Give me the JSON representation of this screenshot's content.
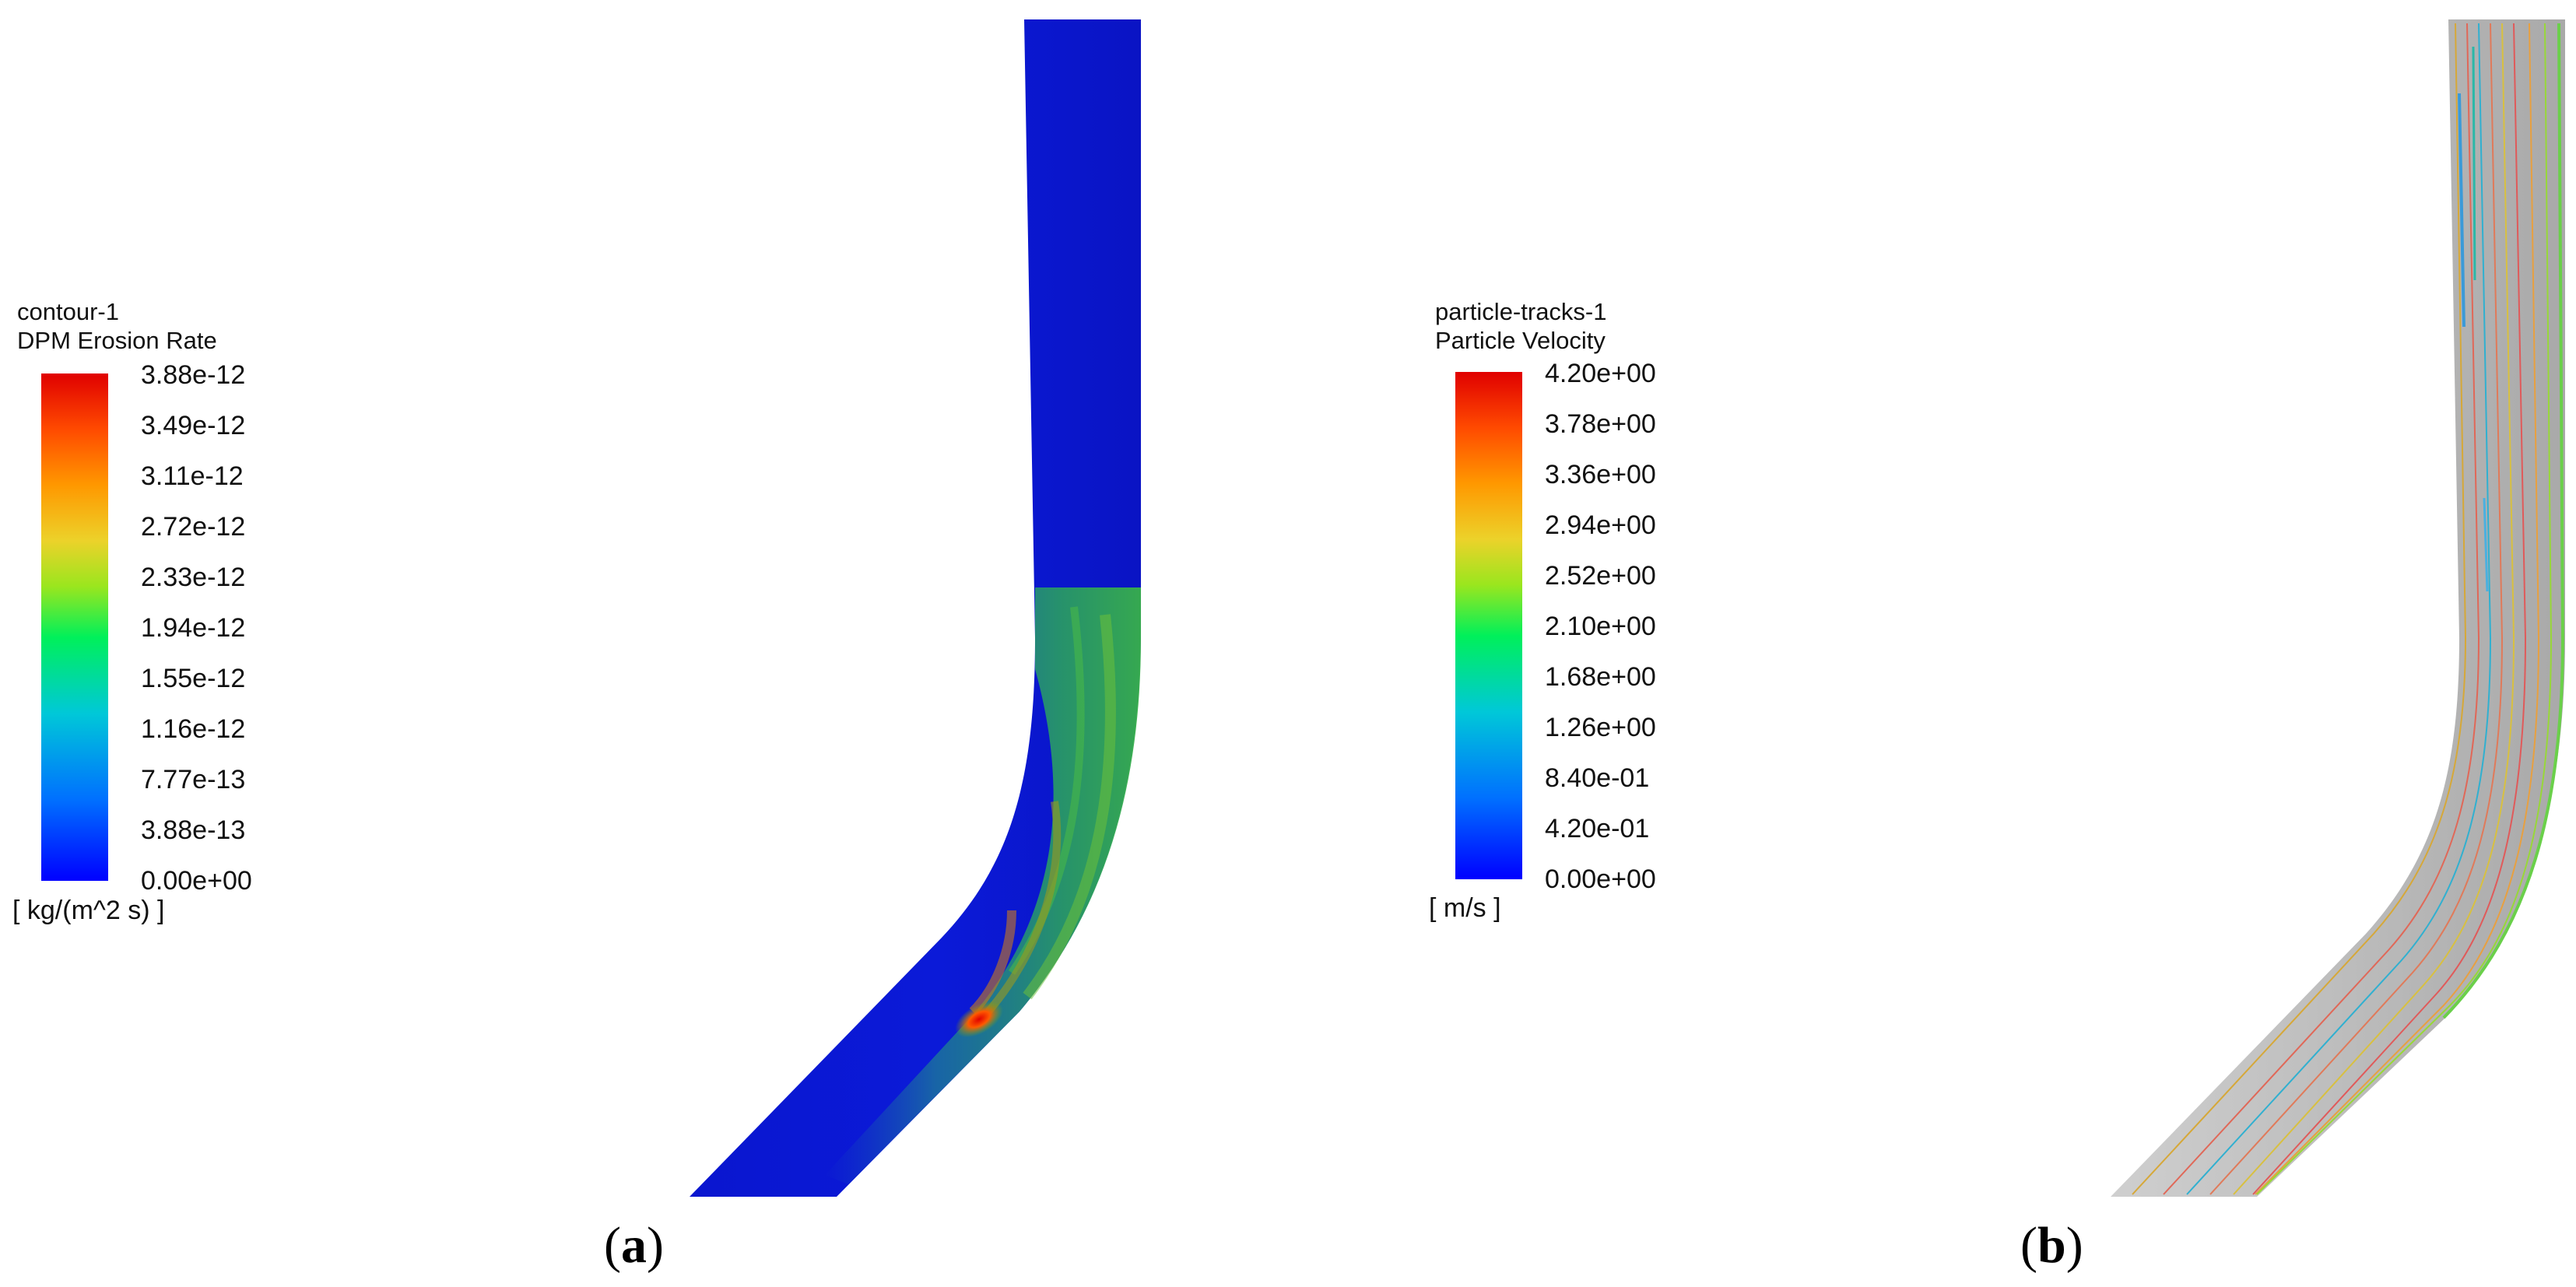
{
  "panel_a": {
    "label_open": "(",
    "label_letter": "a",
    "label_close": ")",
    "legend": {
      "name": "contour-1",
      "variable": "DPM Erosion Rate",
      "ticks": [
        "3.88e-12",
        "3.49e-12",
        "3.11e-12",
        "2.72e-12",
        "2.33e-12",
        "1.94e-12",
        "1.55e-12",
        "1.16e-12",
        "7.77e-13",
        "3.88e-13",
        "0.00e+00"
      ],
      "unit": "[ kg/(m^2 s) ]"
    }
  },
  "panel_b": {
    "label_open": "(",
    "label_letter": "b",
    "label_close": ")",
    "legend": {
      "name": "particle-tracks-1",
      "variable": "Particle Velocity",
      "ticks": [
        "4.20e+00",
        "3.78e+00",
        "3.36e+00",
        "2.94e+00",
        "2.52e+00",
        "2.10e+00",
        "1.68e+00",
        "1.26e+00",
        "8.40e-01",
        "4.20e-01",
        "0.00e+00"
      ],
      "unit": "[ m/s ]"
    }
  },
  "colors": {
    "pipe_low": "#0a16d6",
    "pipe_wall_gray": "#b4b4b4",
    "map_max": "#e00000",
    "map_min": "#0000ff"
  }
}
